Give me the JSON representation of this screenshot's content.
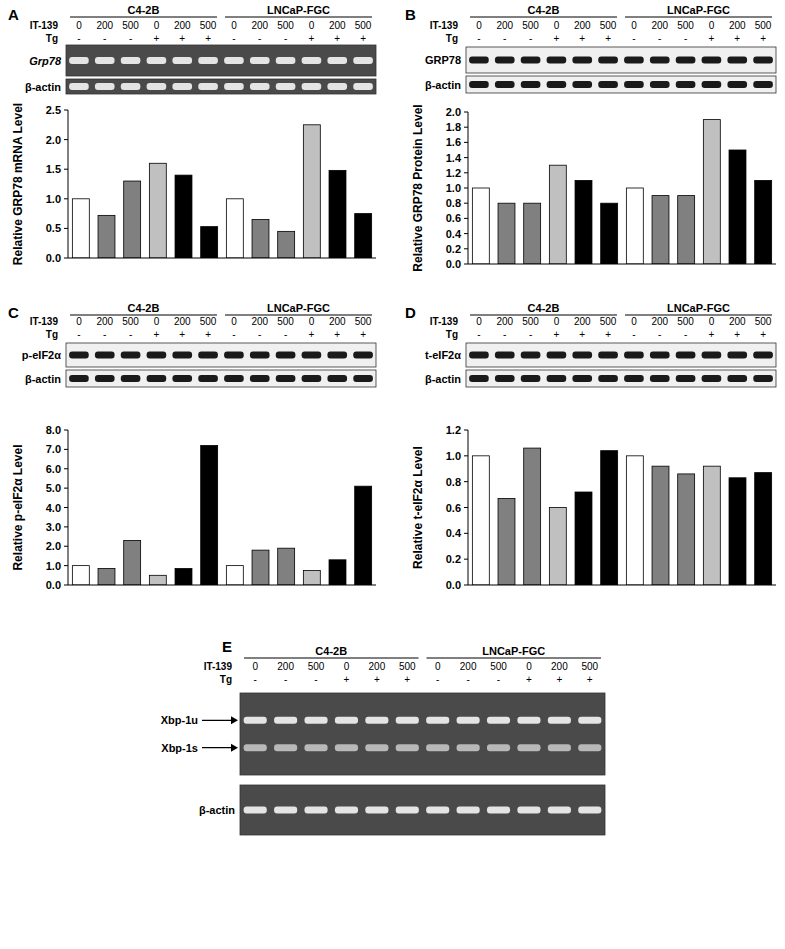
{
  "figure": {
    "panels": [
      {
        "letter": "A",
        "cell_lines": [
          "C4-2B",
          "LNCaP-FGC"
        ],
        "treatments": [
          {
            "name": "IT-139",
            "levels": [
              "0",
              "200",
              "500",
              "0",
              "200",
              "500",
              "0",
              "200",
              "500",
              "0",
              "200",
              "500"
            ]
          },
          {
            "name": "Tg",
            "levels": [
              "-",
              "-",
              "-",
              "+",
              "+",
              "+",
              "-",
              "-",
              "-",
              "+",
              "+",
              "+"
            ]
          }
        ],
        "blots": [
          [
            "Grp78"
          ],
          [
            "β-actin"
          ]
        ]
      },
      {
        "letter": "B",
        "cell_lines": [
          "C4-2B",
          "LNCaP-FGC"
        ],
        "treatments": [
          {
            "name": "IT-139",
            "levels": [
              "0",
              "200",
              "500",
              "0",
              "200",
              "500",
              "0",
              "200",
              "500",
              "0",
              "200",
              "500"
            ]
          },
          {
            "name": "Tg",
            "levels": [
              "-",
              "-",
              "-",
              "+",
              "+",
              "+",
              "-",
              "-",
              "-",
              "+",
              "+",
              "+"
            ]
          }
        ],
        "blots": [
          [
            "GRP78"
          ],
          [
            "β-actin"
          ]
        ]
      },
      {
        "letter": "C",
        "cell_lines": [
          "C4-2B",
          "LNCaP-FGC"
        ],
        "treatments": [
          {
            "name": "IT-139",
            "levels": [
              "0",
              "200",
              "500",
              "0",
              "200",
              "500",
              "0",
              "200",
              "500",
              "0",
              "200",
              "500"
            ]
          },
          {
            "name": "Tg",
            "levels": [
              "-",
              "-",
              "-",
              "+",
              "+",
              "+",
              "-",
              "-",
              "-",
              "+",
              "+",
              "+"
            ]
          }
        ],
        "blots": [
          [
            "p-eIF2α"
          ],
          [
            "β-actin"
          ]
        ]
      },
      {
        "letter": "D",
        "cell_lines": [
          "C4-2B",
          "LNCaP-FGC"
        ],
        "treatments": [
          {
            "name": "IT-139",
            "levels": [
              "0",
              "200",
              "500",
              "0",
              "200",
              "500",
              "0",
              "200",
              "500",
              "0",
              "200",
              "500"
            ]
          },
          {
            "name": "Tg",
            "levels": [
              "-",
              "-",
              "-",
              "+",
              "+",
              "+",
              "-",
              "-",
              "-",
              "+",
              "+",
              "+"
            ]
          }
        ],
        "blots": [
          [
            "t-eIF2α"
          ],
          [
            "β-actin"
          ]
        ]
      },
      {
        "letter": "E",
        "cell_lines": [
          "C4-2B",
          "LNCaP-FGC"
        ],
        "treatments": [
          {
            "name": "IT-139",
            "levels": [
              "0",
              "200",
              "500",
              "0",
              "200",
              "500",
              "0",
              "200",
              "500",
              "0",
              "200",
              "500"
            ]
          },
          {
            "name": "Tg",
            "levels": [
              "-",
              "-",
              "-",
              "+",
              "+",
              "+",
              "-",
              "-",
              "-",
              "+",
              "+",
              "+"
            ]
          }
        ],
        "blots": [
          [
            "Xbp-1u",
            "Xbp-1s"
          ],
          [
            "β-actin"
          ]
        ]
      }
    ]
  },
  "chart_data": [
    {
      "type": "bar",
      "y_label": "Relative GRP78 mRNA Level",
      "categories": [
        null,
        null,
        null,
        null,
        null,
        null,
        null,
        null,
        null,
        null,
        null,
        null
      ],
      "values": [
        1.0,
        0.72,
        1.3,
        1.6,
        1.4,
        0.53,
        1.0,
        0.65,
        0.45,
        2.25,
        1.48,
        0.75
      ],
      "colors": [
        "#ffffff",
        "#808080",
        "#808080",
        "#c0c0c0",
        "#000000",
        "#000000",
        "#ffffff",
        "#808080",
        "#808080",
        "#c0c0c0",
        "#000000",
        "#000000"
      ],
      "ylim": [
        0,
        2.5
      ],
      "yticks": [
        {
          "value": 0,
          "label": "0.0"
        },
        0.5,
        {
          "value": 1,
          "label": "1.0"
        },
        1.5,
        {
          "value": 2,
          "label": "2.0"
        },
        2.5
      ],
      "grid": false,
      "tick_labels": "y"
    },
    {
      "type": "bar",
      "y_label": "Relative GRP78 Protein Level",
      "categories": [
        null,
        null,
        null,
        null,
        null,
        null,
        null,
        null,
        null,
        null,
        null,
        null
      ],
      "values": [
        1.0,
        0.8,
        0.8,
        1.3,
        1.1,
        0.8,
        1.0,
        0.9,
        0.9,
        1.9,
        1.5,
        1.1
      ],
      "colors": [
        "#ffffff",
        "#808080",
        "#808080",
        "#c0c0c0",
        "#000000",
        "#000000",
        "#ffffff",
        "#808080",
        "#808080",
        "#c0c0c0",
        "#000000",
        "#000000"
      ],
      "ylim": [
        0,
        2.0
      ],
      "yticks": [
        {
          "value": 0,
          "label": "0.0"
        },
        0.2,
        0.4,
        0.6,
        0.8,
        {
          "value": 1,
          "label": "1.0"
        },
        1.2,
        1.4,
        1.6,
        1.8,
        {
          "value": 2,
          "label": "2.0"
        }
      ],
      "grid": false,
      "tick_labels": "y"
    },
    {
      "type": "bar",
      "y_label": "Relative p-eIF2α Level",
      "categories": [
        null,
        null,
        null,
        null,
        null,
        null,
        null,
        null,
        null,
        null,
        null,
        null
      ],
      "values": [
        1.0,
        0.85,
        2.3,
        0.5,
        0.85,
        7.2,
        1.0,
        1.8,
        1.9,
        0.75,
        1.3,
        5.1
      ],
      "colors": [
        "#ffffff",
        "#808080",
        "#808080",
        "#c0c0c0",
        "#000000",
        "#000000",
        "#ffffff",
        "#808080",
        "#808080",
        "#c0c0c0",
        "#000000",
        "#000000"
      ],
      "ylim": [
        0,
        8
      ],
      "yticks": [
        {
          "value": 0,
          "label": "0.0"
        },
        {
          "value": 1,
          "label": "1.0"
        },
        {
          "value": 2,
          "label": "2.0"
        },
        {
          "value": 3,
          "label": "3.0"
        },
        {
          "value": 4,
          "label": "4.0"
        },
        {
          "value": 5,
          "label": "5.0"
        },
        {
          "value": 6,
          "label": "6.0"
        },
        {
          "value": 7,
          "label": "7.0"
        },
        {
          "value": 8,
          "label": "8.0"
        }
      ],
      "grid": false,
      "tick_labels": "y"
    },
    {
      "type": "bar",
      "y_label": "Relative t-eIF2α Level",
      "categories": [
        null,
        null,
        null,
        null,
        null,
        null,
        null,
        null,
        null,
        null,
        null,
        null
      ],
      "values": [
        1.0,
        0.67,
        1.06,
        0.6,
        0.72,
        1.04,
        1.0,
        0.92,
        0.86,
        0.92,
        0.83,
        0.87
      ],
      "colors": [
        "#ffffff",
        "#808080",
        "#808080",
        "#c0c0c0",
        "#000000",
        "#000000",
        "#ffffff",
        "#808080",
        "#808080",
        "#c0c0c0",
        "#000000",
        "#000000"
      ],
      "ylim": [
        0,
        1.2
      ],
      "yticks": [
        {
          "value": 0,
          "label": "0.0"
        },
        0.2,
        0.4,
        0.6,
        0.8,
        {
          "value": 1,
          "label": "1.0"
        },
        1.2
      ],
      "grid": false,
      "tick_labels": "y"
    }
  ]
}
